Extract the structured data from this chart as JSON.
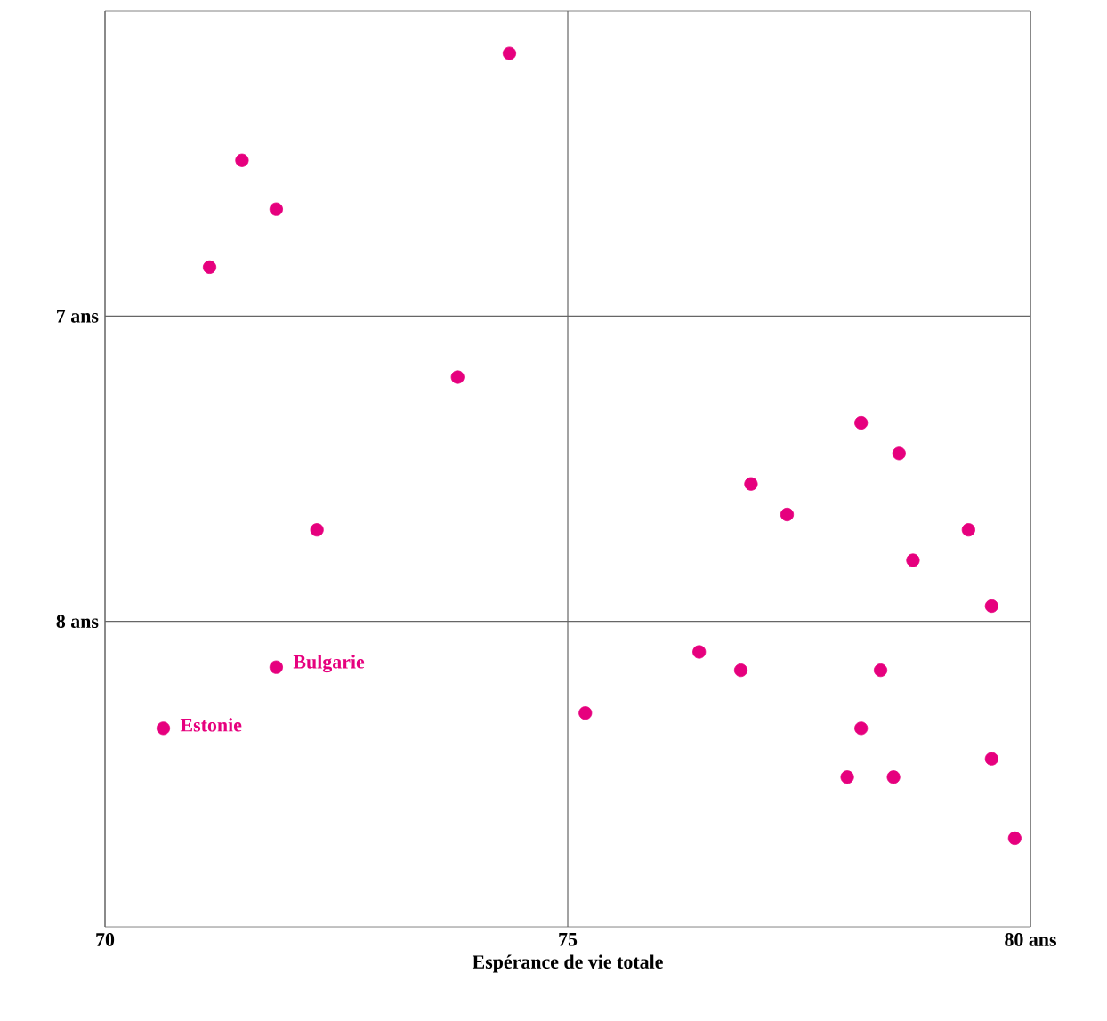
{
  "chart_data": {
    "type": "scatter",
    "xlabel": "Espérance de vie totale",
    "xlim": [
      70,
      80
    ],
    "ylim": [
      9,
      6
    ],
    "xticks": [
      70,
      75,
      {
        "value": 80,
        "label": "80 ans"
      }
    ],
    "yticks": [
      {
        "value": 7,
        "label": "7 ans"
      },
      {
        "value": 8,
        "label": "8 ans"
      }
    ],
    "grid": true,
    "marker": "circle",
    "series": [
      {
        "color": "#e6007e",
        "x": [
          74.37,
          71.48,
          71.85,
          71.13,
          73.81,
          72.29,
          71.85,
          70.63,
          78.17,
          78.58,
          76.98,
          77.37,
          79.33,
          78.73,
          79.58,
          76.42,
          76.87,
          78.38,
          75.19,
          78.17,
          78.02,
          78.52,
          79.58,
          79.83
        ],
        "values": [
          6.14,
          6.49,
          6.65,
          6.84,
          7.2,
          7.7,
          8.15,
          8.35,
          7.35,
          7.45,
          7.55,
          7.65,
          7.7,
          7.8,
          7.95,
          8.1,
          8.16,
          8.16,
          8.3,
          8.35,
          8.51,
          8.51,
          8.45,
          8.71
        ]
      }
    ],
    "annotations": [
      {
        "text": "Bulgarie",
        "x": 71.85,
        "y": 8.15
      },
      {
        "text": "Estonie",
        "x": 70.63,
        "y": 8.35
      }
    ]
  }
}
